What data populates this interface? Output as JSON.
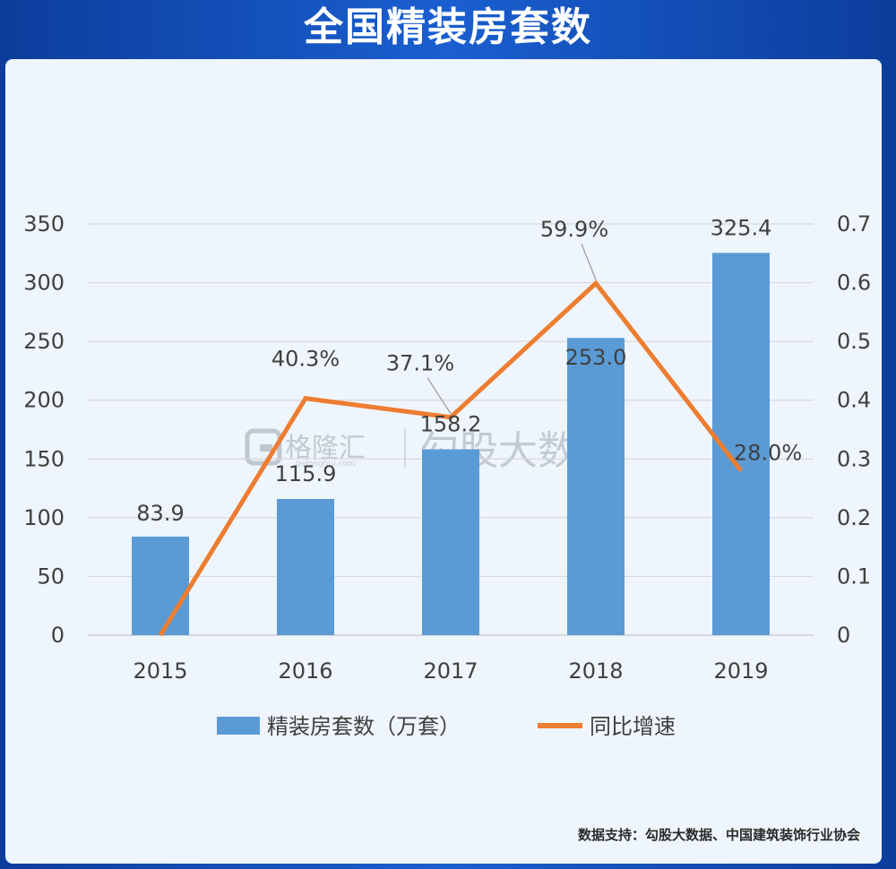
{
  "page": {
    "title": "全国精装房套数",
    "footnote": "数据支持：勾股大数据、中国建筑装饰行业协会",
    "watermark": {
      "brand": "格隆汇",
      "site": "gelonghui.com",
      "source": "勾股大数据"
    }
  },
  "chart_data": {
    "type": "bar",
    "title": "全国精装房套数",
    "categories": [
      "2015",
      "2016",
      "2017",
      "2018",
      "2019"
    ],
    "series": [
      {
        "name": "精装房套数（万套）",
        "type": "bar",
        "axis": "left",
        "color": "#5b9bd5",
        "values": [
          83.9,
          115.9,
          158.2,
          253.0,
          325.4
        ],
        "labels": [
          "83.9",
          "115.9",
          "158.2",
          "253.0",
          "325.4"
        ]
      },
      {
        "name": "同比增速",
        "type": "line",
        "axis": "right",
        "color": "#ed7d31",
        "values": [
          0,
          0.403,
          0.371,
          0.599,
          0.28
        ],
        "labels": [
          "",
          "40.3%",
          "37.1%",
          "59.9%",
          "28.0%"
        ]
      }
    ],
    "ylim": [
      0,
      350
    ],
    "yticks": [
      "0",
      "50",
      "100",
      "150",
      "200",
      "250",
      "300",
      "350"
    ],
    "y2lim": [
      0,
      0.7
    ],
    "y2ticks": [
      "0",
      "0.1",
      "0.2",
      "0.3",
      "0.4",
      "0.5",
      "0.6",
      "0.7"
    ],
    "grid": true,
    "legend_position": "bottom"
  },
  "colors": {
    "background": "#1a5fd0",
    "card": "#eef5fc",
    "bar": "#5b9bd5",
    "line": "#ed7d31",
    "grid": "#d9d9d9",
    "text": "#404040"
  }
}
